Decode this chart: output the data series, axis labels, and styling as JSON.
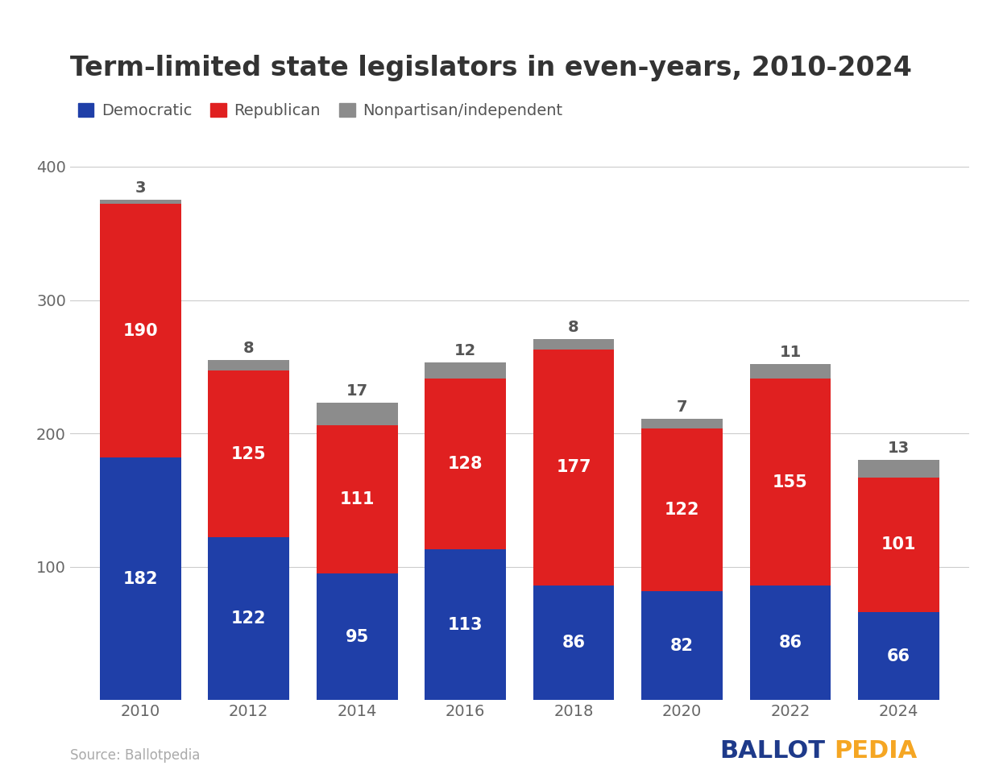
{
  "title": "Term-limited state legislators in even-years, 2010-2024",
  "years": [
    2010,
    2012,
    2014,
    2016,
    2018,
    2020,
    2022,
    2024
  ],
  "democratic": [
    182,
    122,
    95,
    113,
    86,
    82,
    86,
    66
  ],
  "republican": [
    190,
    125,
    111,
    128,
    177,
    122,
    155,
    101
  ],
  "nonpartisan": [
    3,
    8,
    17,
    12,
    8,
    7,
    11,
    13
  ],
  "dem_color": "#1f3fa8",
  "rep_color": "#e02020",
  "non_color": "#8c8c8c",
  "legend_labels": [
    "Democratic",
    "Republican",
    "Nonpartisan/independent"
  ],
  "source_text": "Source: Ballotpedia",
  "ballotpedia_ballot": "BALLOT",
  "ballotpedia_pedia": "PEDIA",
  "ballot_color": "#1e3a8a",
  "pedia_color": "#f5a623",
  "ylim": [
    0,
    420
  ],
  "yticks": [
    100,
    200,
    300,
    400
  ],
  "background_color": "#ffffff",
  "bar_width": 0.75,
  "title_fontsize": 24,
  "tick_fontsize": 14,
  "legend_fontsize": 14,
  "source_fontsize": 12,
  "watermark_fontsize": 22,
  "value_fontsize": 15,
  "non_label_fontsize": 14
}
